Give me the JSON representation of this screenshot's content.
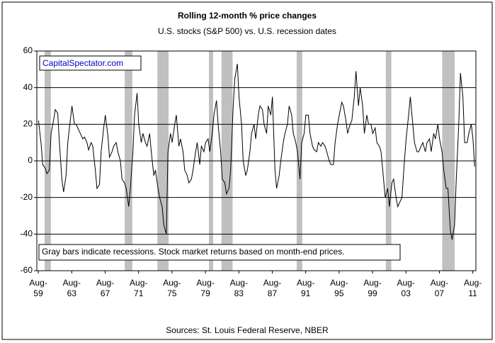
{
  "chart_data": {
    "type": "line",
    "title": "Rolling 12-month %  price changes",
    "subtitle": "U.S. stocks (S&P 500) vs. U.S. recession dates",
    "source": "Sources: St. Louis Federal Reserve, NBER",
    "watermark": "CapitalSpectator.com",
    "note": "Gray bars indicate recessions. Stock market returns based on month-end prices.",
    "xlim": [
      1959.4,
      2011.95
    ],
    "ylim": [
      -60,
      60
    ],
    "yticks": [
      -60,
      -40,
      -20,
      0,
      20,
      40,
      60
    ],
    "xticks": [
      {
        "value": 1959.58,
        "label": "Aug-59"
      },
      {
        "value": 1963.58,
        "label": "Aug-63"
      },
      {
        "value": 1967.58,
        "label": "Aug-67"
      },
      {
        "value": 1971.58,
        "label": "Aug-71"
      },
      {
        "value": 1975.58,
        "label": "Aug-75"
      },
      {
        "value": 1979.58,
        "label": "Aug-79"
      },
      {
        "value": 1983.58,
        "label": "Aug-83"
      },
      {
        "value": 1987.58,
        "label": "Aug-87"
      },
      {
        "value": 1991.58,
        "label": "Aug-91"
      },
      {
        "value": 1995.58,
        "label": "Aug-95"
      },
      {
        "value": 1999.58,
        "label": "Aug-99"
      },
      {
        "value": 2003.58,
        "label": "Aug-03"
      },
      {
        "value": 2007.58,
        "label": "Aug-07"
      },
      {
        "value": 2011.58,
        "label": "Aug-11"
      }
    ],
    "grid": true,
    "recessions": [
      [
        1960.33,
        1961.08
      ],
      [
        1969.92,
        1970.83
      ],
      [
        1973.83,
        1975.17
      ],
      [
        1980.0,
        1980.5
      ],
      [
        1981.5,
        1982.83
      ],
      [
        1990.5,
        1991.17
      ],
      [
        2001.17,
        2001.83
      ],
      [
        2007.92,
        2009.42
      ]
    ],
    "recession_color": "#c0c0c0",
    "series": [
      {
        "name": "S&P 500",
        "color": "#000000",
        "x": [
          1959.6,
          1959.9,
          1960.1,
          1960.4,
          1960.6,
          1960.9,
          1961.1,
          1961.4,
          1961.6,
          1961.9,
          1962.1,
          1962.4,
          1962.6,
          1962.9,
          1963.1,
          1963.4,
          1963.6,
          1963.9,
          1964.1,
          1964.4,
          1964.6,
          1964.9,
          1965.1,
          1965.4,
          1965.6,
          1965.9,
          1966.1,
          1966.4,
          1966.6,
          1966.9,
          1967.1,
          1967.4,
          1967.6,
          1967.9,
          1968.1,
          1968.4,
          1968.6,
          1968.9,
          1969.1,
          1969.4,
          1969.6,
          1969.9,
          1970.1,
          1970.4,
          1970.6,
          1970.9,
          1971.1,
          1971.4,
          1971.6,
          1971.9,
          1972.1,
          1972.4,
          1972.6,
          1972.9,
          1973.1,
          1973.4,
          1973.6,
          1973.9,
          1974.1,
          1974.4,
          1974.6,
          1974.9,
          1975.1,
          1975.4,
          1975.6,
          1975.9,
          1976.1,
          1976.4,
          1976.6,
          1976.9,
          1977.1,
          1977.4,
          1977.6,
          1977.9,
          1978.1,
          1978.4,
          1978.6,
          1978.9,
          1979.1,
          1979.4,
          1979.6,
          1979.9,
          1980.1,
          1980.4,
          1980.6,
          1980.9,
          1981.1,
          1981.4,
          1981.6,
          1981.9,
          1982.1,
          1982.4,
          1982.6,
          1982.9,
          1983.1,
          1983.4,
          1983.6,
          1983.9,
          1984.1,
          1984.4,
          1984.6,
          1984.9,
          1985.1,
          1985.4,
          1985.6,
          1985.9,
          1986.1,
          1986.4,
          1986.6,
          1986.9,
          1987.1,
          1987.4,
          1987.6,
          1987.9,
          1988.1,
          1988.4,
          1988.6,
          1988.9,
          1989.1,
          1989.4,
          1989.6,
          1989.9,
          1990.1,
          1990.4,
          1990.6,
          1990.9,
          1991.1,
          1991.4,
          1991.6,
          1991.9,
          1992.1,
          1992.4,
          1992.6,
          1992.9,
          1993.1,
          1993.4,
          1993.6,
          1993.9,
          1994.1,
          1994.4,
          1994.6,
          1994.9,
          1995.1,
          1995.4,
          1995.6,
          1995.9,
          1996.1,
          1996.4,
          1996.6,
          1996.9,
          1997.1,
          1997.4,
          1997.6,
          1997.9,
          1998.1,
          1998.4,
          1998.6,
          1998.9,
          1999.1,
          1999.4,
          1999.6,
          1999.9,
          2000.1,
          2000.4,
          2000.6,
          2000.9,
          2001.1,
          2001.4,
          2001.6,
          2001.9,
          2002.1,
          2002.4,
          2002.6,
          2002.9,
          2003.1,
          2003.4,
          2003.6,
          2003.9,
          2004.1,
          2004.4,
          2004.6,
          2004.9,
          2005.1,
          2005.4,
          2005.6,
          2005.9,
          2006.1,
          2006.4,
          2006.6,
          2006.9,
          2007.1,
          2007.4,
          2007.6,
          2007.9,
          2008.1,
          2008.4,
          2008.6,
          2008.9,
          2009.1,
          2009.4,
          2009.6,
          2009.9,
          2010.1,
          2010.4,
          2010.6,
          2010.9,
          2011.1,
          2011.4,
          2011.6,
          2011.8
        ],
        "values": [
          22,
          10,
          -2,
          -4,
          -7,
          -5,
          15,
          22,
          28,
          26,
          10,
          -10,
          -17,
          -8,
          10,
          22,
          30,
          20,
          20,
          17,
          15,
          12,
          13,
          10,
          6,
          10,
          8,
          -5,
          -15,
          -13,
          5,
          18,
          25,
          14,
          2,
          5,
          8,
          10,
          5,
          0,
          -10,
          -12,
          -15,
          -25,
          -15,
          5,
          25,
          37,
          20,
          10,
          15,
          10,
          8,
          15,
          5,
          -8,
          -5,
          -15,
          -20,
          -25,
          -35,
          -40,
          5,
          15,
          10,
          20,
          25,
          8,
          12,
          5,
          -5,
          -8,
          -12,
          -10,
          -5,
          5,
          10,
          -2,
          8,
          5,
          10,
          12,
          5,
          15,
          25,
          33,
          20,
          5,
          -10,
          -12,
          -18,
          -15,
          -5,
          30,
          45,
          53,
          35,
          20,
          0,
          -8,
          -5,
          5,
          15,
          20,
          12,
          25,
          30,
          28,
          20,
          15,
          30,
          25,
          35,
          -5,
          -15,
          -8,
          0,
          10,
          15,
          20,
          30,
          25,
          15,
          10,
          5,
          -10,
          10,
          15,
          25,
          25,
          15,
          8,
          6,
          5,
          10,
          8,
          10,
          8,
          5,
          0,
          -2,
          -2,
          10,
          20,
          25,
          32,
          30,
          22,
          15,
          20,
          22,
          35,
          49,
          30,
          40,
          30,
          15,
          25,
          20,
          20,
          15,
          18,
          10,
          8,
          5,
          -10,
          -20,
          -15,
          -25,
          -12,
          -10,
          -20,
          -25,
          -22,
          -20,
          0,
          12,
          25,
          35,
          20,
          10,
          5,
          5,
          8,
          10,
          5,
          10,
          12,
          5,
          15,
          12,
          20,
          12,
          5,
          -5,
          -15,
          -15,
          -38,
          -43,
          -35,
          -10,
          20,
          48,
          35,
          10,
          10,
          15,
          20,
          12,
          -3
        ]
      }
    ]
  }
}
